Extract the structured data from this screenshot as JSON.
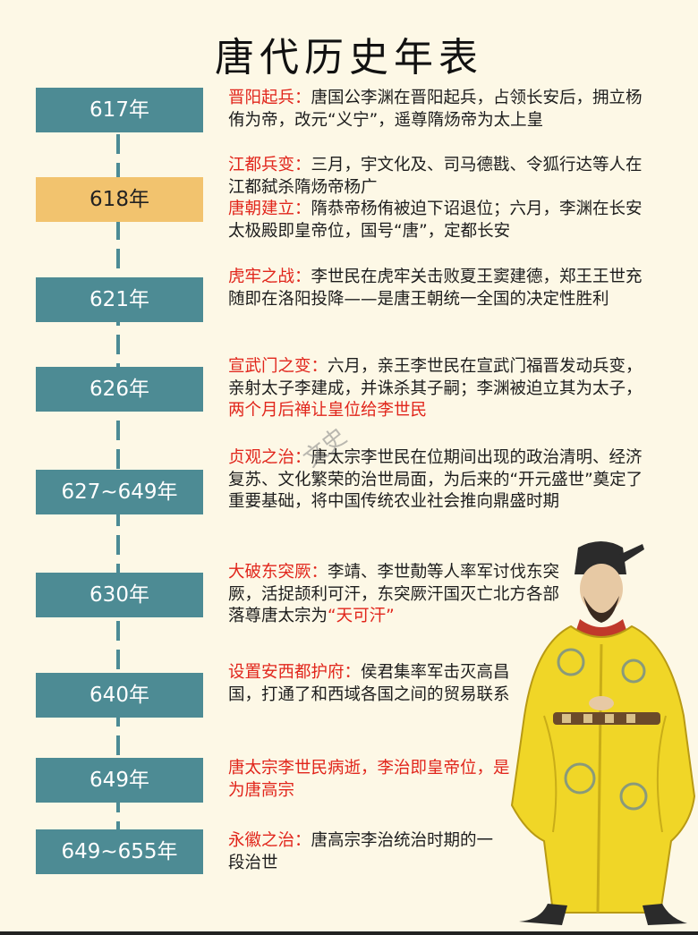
{
  "title": "唐代历史年表",
  "watermark": "文史",
  "colors": {
    "year_box": "#4d8b94",
    "year_highlight": "#f2c36e",
    "label_red": "#e1261c",
    "background": "#fdf8e6"
  },
  "entries": [
    {
      "year": "617年",
      "events": [
        {
          "label": "晋阳起兵：",
          "text": "唐国公李渊在晋阳起兵，占领长安后，拥立杨侑为帝，改元“义宁”，遥尊隋炀帝为太上皇"
        }
      ]
    },
    {
      "year": "618年",
      "events": [
        {
          "label": "江都兵变：",
          "text": "三月，宇文化及、司马德戡、令狐行达等人在江都弑杀隋炀帝杨广"
        },
        {
          "label": "唐朝建立：",
          "text": "隋恭帝杨侑被迫下诏退位；六月，李渊在长安太极殿即皇帝位，国号“唐”，定都长安"
        }
      ]
    },
    {
      "year": "621年",
      "events": [
        {
          "label": "虎牢之战：",
          "text": "李世民在虎牢关击败夏王窦建德，郑王王世充随即在洛阳投降——是唐王朝统一全国的决定性胜利"
        }
      ]
    },
    {
      "year": "626年",
      "events": [
        {
          "label": "宣武门之变：",
          "text": "六月，亲王李世民在宣武门福晋发动兵变，亲射太子李建成，并诛杀其子嗣；李渊被迫立其为太子，",
          "red_tail": "两个月后禅让皇位给李世民"
        }
      ]
    },
    {
      "year": "627~649年",
      "events": [
        {
          "label": "贞观之治：",
          "text": "唐太宗李世民在位期间出现的政治清明、经济复苏、文化繁荣的治世局面，为后来的“开元盛世”奠定了重要基础，将中国传统农业社会推向鼎盛时期"
        }
      ]
    },
    {
      "year": "630年",
      "events": [
        {
          "label": "大破东突厥：",
          "text": "李靖、李世勣等人率军讨伐东突厥，活捉颉利可汗，东突厥汗国灭亡北方各部落尊唐太宗为",
          "red_tail": "“天可汗”"
        }
      ]
    },
    {
      "year": "640年",
      "events": [
        {
          "label": "设置安西都护府：",
          "text": "侯君集率军击灭高昌国，打通了和西域各国之间的贸易联系"
        }
      ]
    },
    {
      "year": "649年",
      "events": [
        {
          "label": "唐太宗李世民病逝，李治即皇帝位，是为唐高宗",
          "text": ""
        }
      ]
    },
    {
      "year": "649~655年",
      "events": [
        {
          "label": "永徽之治：",
          "text": "唐高宗李治统治时期的一段治世"
        }
      ]
    }
  ]
}
